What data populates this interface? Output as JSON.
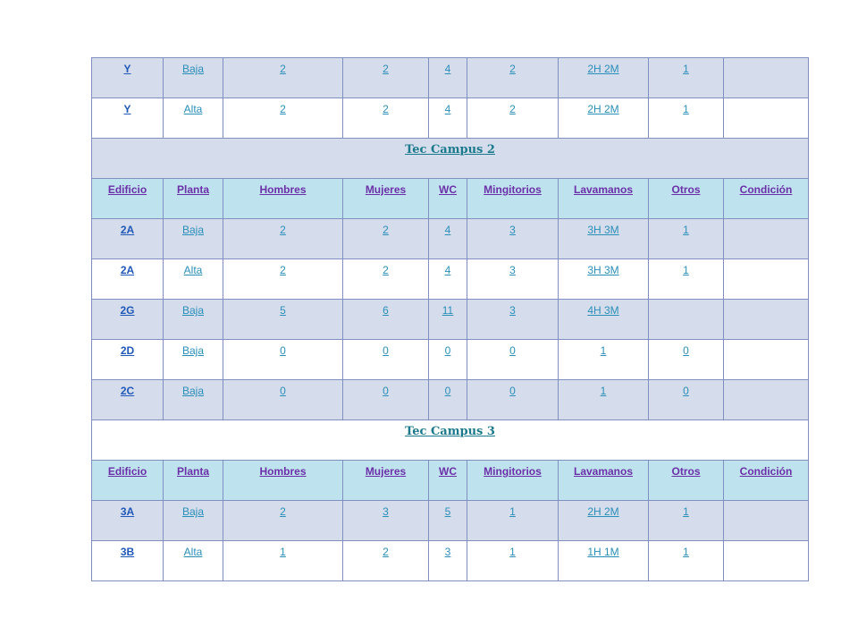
{
  "top_rows": [
    [
      "Y",
      "Baja",
      "2",
      "2",
      "4",
      "2",
      "2H 2M",
      "1",
      ""
    ],
    [
      "Y",
      "Alta",
      "2",
      "2",
      "4",
      "2",
      "2H 2M",
      "1",
      ""
    ]
  ],
  "section2": {
    "title": "Tec Campus 2",
    "headers": [
      "Edificio",
      "Planta",
      "Hombres",
      "Mujeres",
      "WC",
      "Mingitorios",
      "Lavamanos",
      "Otros",
      "Condición"
    ],
    "rows": [
      [
        "2A",
        "Baja",
        "2",
        "2",
        "4",
        "3",
        "3H 3M",
        "1",
        ""
      ],
      [
        "2A",
        "Alta",
        "2",
        "2",
        "4",
        "3",
        "3H 3M",
        "1",
        ""
      ],
      [
        "2G",
        "Baja",
        "5",
        "6",
        "11",
        "3",
        "4H 3M",
        "",
        ""
      ],
      [
        "2D",
        "Baja",
        "0",
        "0",
        "0",
        "0",
        "1",
        "0",
        ""
      ],
      [
        "2C",
        "Baja",
        "0",
        "0",
        "0",
        "0",
        "1",
        "0",
        ""
      ]
    ]
  },
  "section3": {
    "title": "Tec Campus 3",
    "headers": [
      "Edificio",
      "Planta",
      "Hombres",
      "Mujeres",
      "WC",
      "Mingitorios",
      "Lavamanos",
      "Otros",
      "Condición"
    ],
    "rows": [
      [
        "3A",
        "Baja",
        "2",
        "3",
        "5",
        "1",
        "2H 2M",
        "1",
        ""
      ],
      [
        "3B",
        "Alta",
        "1",
        "2",
        "3",
        "1",
        "1H 1M",
        "1",
        ""
      ]
    ]
  }
}
